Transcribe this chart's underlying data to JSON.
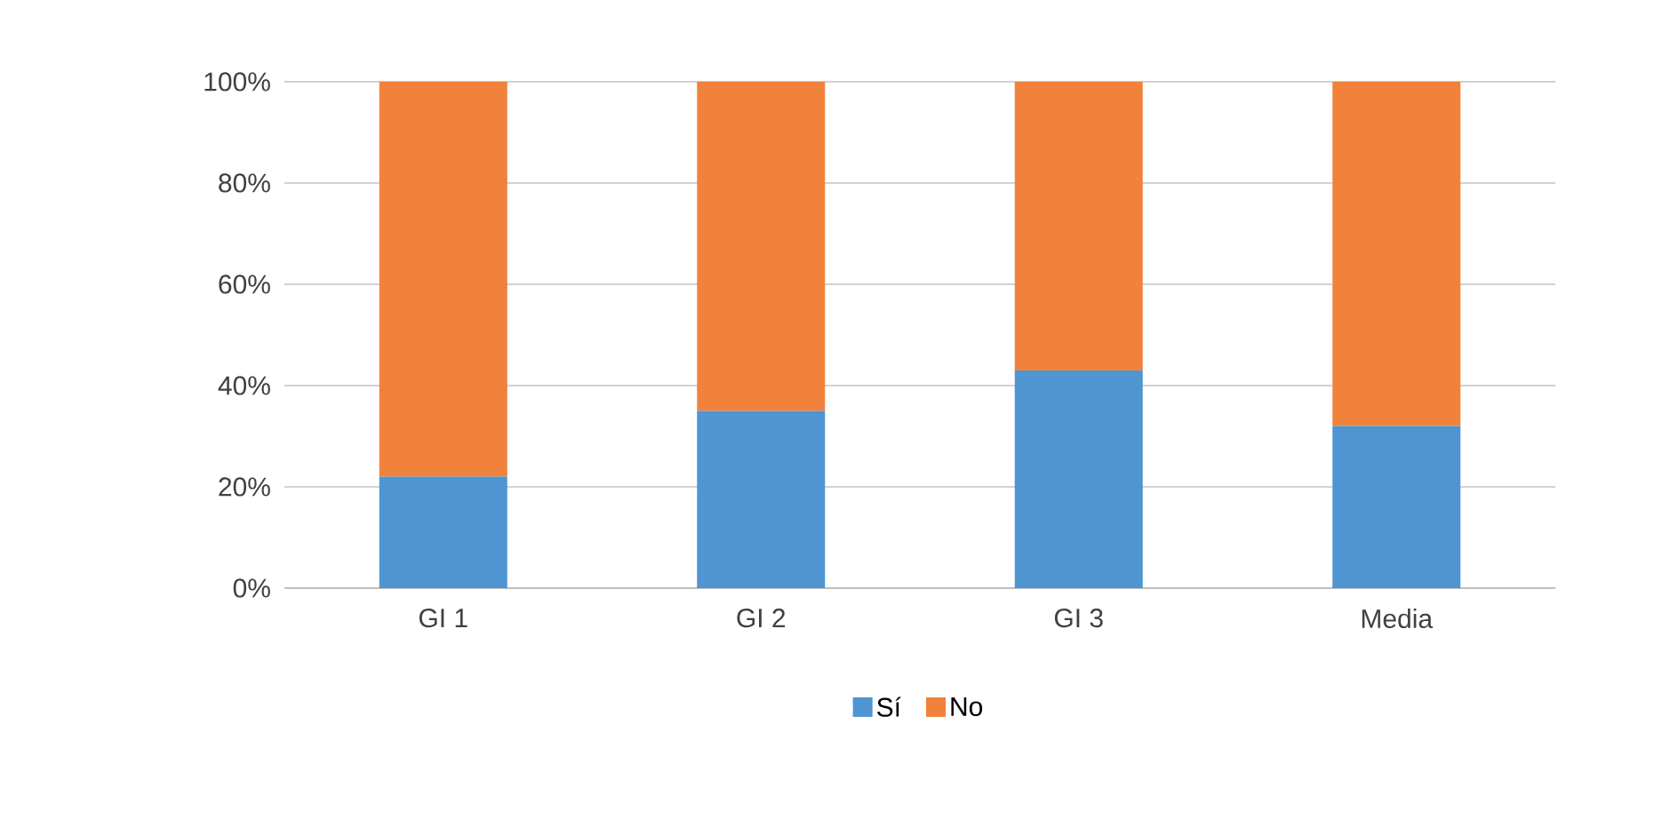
{
  "chart_data": {
    "type": "bar",
    "stacked": true,
    "categories": [
      "GI 1",
      "GI 2",
      "GI 3",
      "Media"
    ],
    "series": [
      {
        "name": "Sí",
        "color": "#4e95d1",
        "values": [
          22,
          35,
          43,
          32
        ]
      },
      {
        "name": "No",
        "color": "#f0823b",
        "values": [
          78,
          65,
          57,
          68
        ]
      }
    ],
    "ylim": [
      0,
      100
    ],
    "yticks": [
      {
        "value": 0,
        "label": "0%"
      },
      {
        "value": 20,
        "label": "20%"
      },
      {
        "value": 40,
        "label": "40%"
      },
      {
        "value": 60,
        "label": "60%"
      },
      {
        "value": 80,
        "label": "80%"
      },
      {
        "value": 100,
        "label": "100%"
      }
    ],
    "grid": "y",
    "legend": "bottom"
  }
}
